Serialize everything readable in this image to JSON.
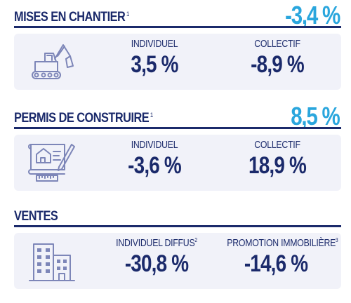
{
  "sections": [
    {
      "title": "MISES EN CHANTIER",
      "title_note": "1",
      "big_value": "-3,4 %",
      "icon": "excavator-icon",
      "left": {
        "label": "INDIVIDUEL",
        "note": "",
        "value": "3,5 %"
      },
      "right": {
        "label": "COLLECTIF",
        "note": "",
        "value": "-8,9 %"
      }
    },
    {
      "title": "PERMIS DE CONSTRUIRE",
      "title_note": "1",
      "big_value": "8,5 %",
      "icon": "blueprint-icon",
      "left": {
        "label": "INDIVIDUEL",
        "note": "",
        "value": "-3,6 %"
      },
      "right": {
        "label": "COLLECTIF",
        "note": "",
        "value": "18,9 %"
      }
    },
    {
      "title": "VENTES",
      "title_note": "",
      "big_value": "",
      "icon": "buildings-icon",
      "left": {
        "label": "INDIVIDUEL DIFFUS",
        "note": "2",
        "value": "-30,8 %"
      },
      "right": {
        "label": "PROMOTION IMMOBILIÈRE",
        "note": "3",
        "value": "-14,6 %"
      }
    }
  ],
  "colors": {
    "navy": "#1b2a6b",
    "accent": "#2aa6dd",
    "card_bg": "#f1f2f9",
    "icon_stroke": "#7d86b8"
  }
}
